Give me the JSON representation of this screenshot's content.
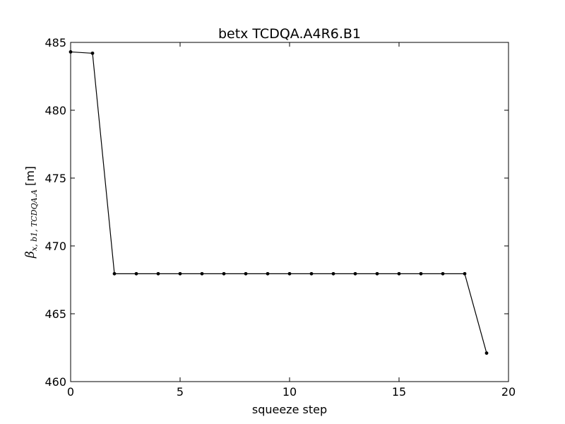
{
  "chart_data": {
    "type": "line",
    "title": "betx TCDQA.A4R6.B1",
    "xlabel": "squeeze step",
    "ylabel": {
      "symbol": "β",
      "subscript": "x, b1, TCDQA.A",
      "unit": "[m]"
    },
    "xlim": [
      0,
      20
    ],
    "ylim": [
      460,
      485
    ],
    "xticks": [
      "0",
      "5",
      "10",
      "15",
      "20"
    ],
    "yticks": [
      "460",
      "465",
      "470",
      "475",
      "480",
      "485"
    ],
    "grid": false,
    "legend": "none",
    "series": [
      {
        "color": "#000000",
        "marker": "dot",
        "x": [
          0,
          1,
          2,
          3,
          4,
          5,
          6,
          7,
          8,
          9,
          10,
          11,
          12,
          13,
          14,
          15,
          16,
          17,
          18,
          19
        ],
        "y": [
          484.3,
          484.2,
          467.95,
          467.95,
          467.95,
          467.95,
          467.95,
          467.95,
          467.95,
          467.95,
          467.95,
          467.95,
          467.95,
          467.95,
          467.95,
          467.95,
          467.95,
          467.95,
          467.95,
          462.1
        ]
      }
    ]
  }
}
